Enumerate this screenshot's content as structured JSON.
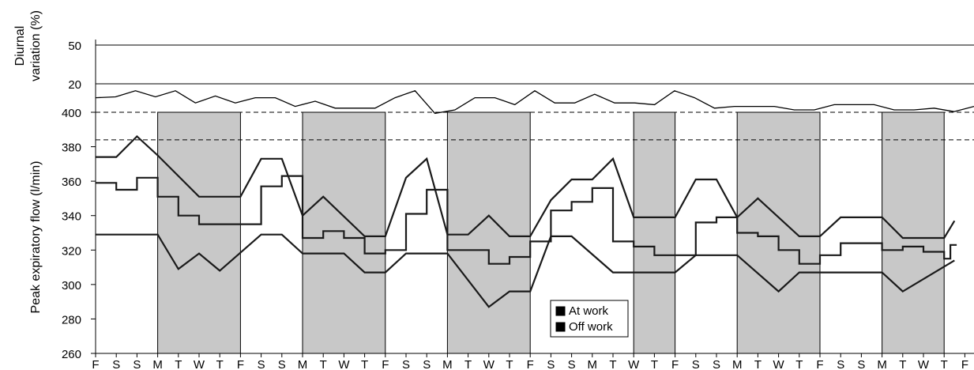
{
  "chart_data": [
    {
      "type": "line",
      "ylabel": "Diurnal variation (%)",
      "ylabel_lines": [
        "Diurnal",
        "variation (%)"
      ],
      "yticks": [
        50,
        20
      ],
      "series": [
        {
          "values": [
            12,
            12.5,
            16,
            12.5,
            16,
            9,
            13,
            9,
            12,
            12,
            7,
            10,
            6,
            6,
            6,
            12,
            16,
            3,
            5,
            12,
            12,
            8,
            16,
            9,
            9,
            14,
            9,
            9,
            8,
            16,
            12,
            6,
            7,
            7,
            7,
            5,
            5,
            8,
            8,
            8,
            5,
            5,
            6,
            4,
            7
          ]
        }
      ]
    },
    {
      "type": "line",
      "ylabel": "Peak expiratory flow (l/min)",
      "ylim": [
        260,
        400
      ],
      "yticks": [
        400,
        380,
        360,
        340,
        320,
        300,
        280,
        260
      ],
      "reference_lines": [
        400,
        384
      ],
      "categories": [
        "F",
        "S",
        "S",
        "M",
        "T",
        "W",
        "T",
        "F",
        "S",
        "S",
        "M",
        "T",
        "W",
        "T",
        "F",
        "S",
        "S",
        "M",
        "T",
        "W",
        "T",
        "F",
        "S",
        "S",
        "M",
        "T",
        "W",
        "T",
        "F",
        "S",
        "S",
        "M",
        "T",
        "W",
        "T",
        "F",
        "S",
        "S",
        "M",
        "T",
        "W",
        "T",
        "F"
      ],
      "shaded_periods": [
        [
          3,
          7
        ],
        [
          10,
          14
        ],
        [
          17,
          21
        ],
        [
          26,
          28
        ],
        [
          31,
          35
        ],
        [
          38,
          41
        ]
      ],
      "series": [
        {
          "step": false,
          "points": [
            [
              0,
              374
            ],
            [
              1,
              374
            ],
            [
              2,
              386
            ],
            [
              3,
              375
            ],
            [
              5,
              351
            ],
            [
              7,
              351
            ],
            [
              8,
              373
            ],
            [
              9,
              373
            ],
            [
              10,
              340
            ],
            [
              11,
              351
            ],
            [
              13,
              328
            ],
            [
              14,
              328
            ],
            [
              15,
              362
            ],
            [
              16,
              373
            ],
            [
              17,
              329
            ],
            [
              18,
              329
            ],
            [
              19,
              340
            ],
            [
              20,
              328
            ],
            [
              21,
              328
            ],
            [
              22,
              349
            ],
            [
              23,
              361
            ],
            [
              24,
              361
            ],
            [
              25,
              373
            ],
            [
              26,
              339
            ],
            [
              28,
              339
            ],
            [
              29,
              361
            ],
            [
              30,
              361
            ],
            [
              31,
              339
            ],
            [
              32,
              350
            ],
            [
              34,
              328
            ],
            [
              35,
              328
            ],
            [
              36,
              339
            ],
            [
              38,
              339
            ],
            [
              39,
              327
            ],
            [
              41,
              327
            ],
            [
              41.5,
              337
            ]
          ]
        },
        {
          "step": true,
          "points": [
            [
              0,
              359
            ],
            [
              1,
              355
            ],
            [
              2,
              362
            ],
            [
              3,
              351
            ],
            [
              4,
              340
            ],
            [
              5,
              335
            ],
            [
              6,
              335
            ],
            [
              8,
              357
            ],
            [
              9,
              363
            ],
            [
              10,
              327
            ],
            [
              11,
              331
            ],
            [
              12,
              327
            ],
            [
              13,
              318
            ],
            [
              14,
              320
            ],
            [
              15,
              341
            ],
            [
              16,
              355
            ],
            [
              17,
              320
            ],
            [
              18,
              320
            ],
            [
              19,
              312
            ],
            [
              20,
              316
            ],
            [
              21,
              325
            ],
            [
              22,
              343
            ],
            [
              23,
              348
            ],
            [
              24,
              356
            ],
            [
              25,
              325
            ],
            [
              26,
              322
            ],
            [
              27,
              317
            ],
            [
              29,
              336
            ],
            [
              30,
              339
            ],
            [
              31,
              330
            ],
            [
              32,
              328
            ],
            [
              33,
              320
            ],
            [
              34,
              312
            ],
            [
              35,
              317
            ],
            [
              36,
              324
            ],
            [
              38,
              320
            ],
            [
              39,
              322
            ],
            [
              40,
              319
            ],
            [
              41,
              315
            ],
            [
              41.3,
              323
            ]
          ]
        },
        {
          "step": false,
          "points": [
            [
              0,
              329
            ],
            [
              1,
              329
            ],
            [
              2,
              329
            ],
            [
              3,
              329
            ],
            [
              4,
              309
            ],
            [
              5,
              318
            ],
            [
              6,
              308
            ],
            [
              8,
              329
            ],
            [
              9,
              329
            ],
            [
              10,
              318
            ],
            [
              12,
              318
            ],
            [
              13,
              307
            ],
            [
              14,
              307
            ],
            [
              15,
              318
            ],
            [
              16,
              318
            ],
            [
              17,
              318
            ],
            [
              19,
              287
            ],
            [
              20,
              296
            ],
            [
              21,
              296
            ],
            [
              22,
              328
            ],
            [
              23,
              328
            ],
            [
              25,
              307
            ],
            [
              26,
              307
            ],
            [
              28,
              307
            ],
            [
              29,
              317
            ],
            [
              31,
              317
            ],
            [
              33,
              296
            ],
            [
              34,
              307
            ],
            [
              35,
              307
            ],
            [
              36,
              307
            ],
            [
              37,
              307
            ],
            [
              38,
              307
            ],
            [
              39,
              296
            ],
            [
              41.5,
              314
            ]
          ]
        }
      ],
      "legend": {
        "position": "bottom-center",
        "entries": [
          {
            "label": "At work",
            "color": "#c8c8c8"
          },
          {
            "label": "Off work",
            "color": "#ffffff"
          }
        ]
      }
    }
  ]
}
